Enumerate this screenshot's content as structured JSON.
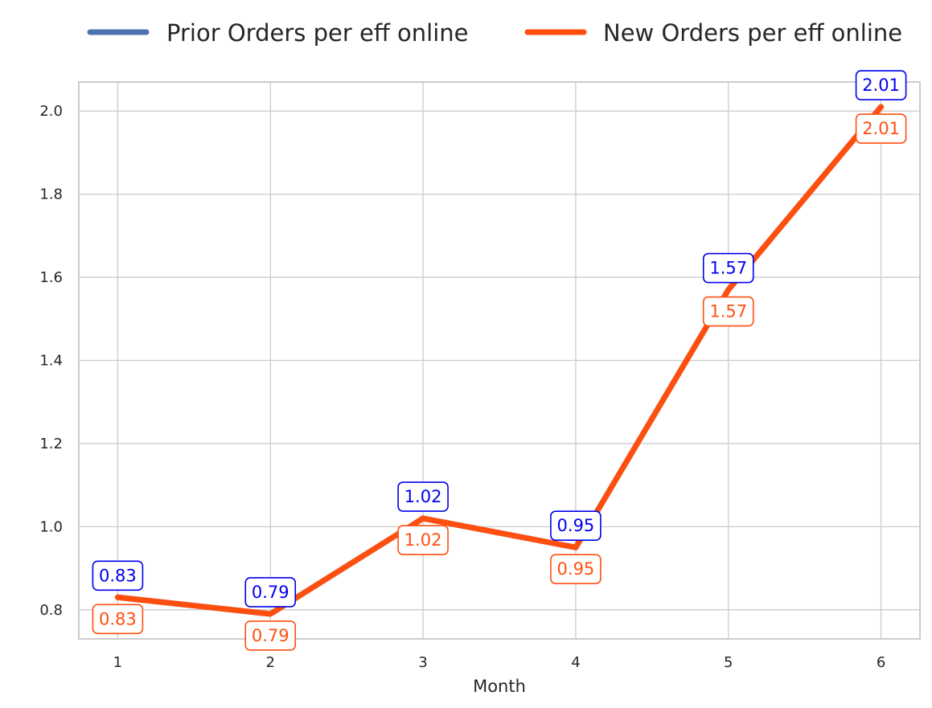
{
  "chart_data": {
    "type": "line",
    "categories": [
      "1",
      "2",
      "3",
      "4",
      "5",
      "6"
    ],
    "x": [
      1,
      2,
      3,
      4,
      5,
      6
    ],
    "xlabel": "Month",
    "ylabel": "",
    "title": "",
    "ylim": [
      0.73,
      2.07
    ],
    "yticks": [
      "0.8",
      "1.0",
      "1.2",
      "1.4",
      "1.6",
      "1.8",
      "2.0"
    ],
    "ytick_values": [
      0.8,
      1.0,
      1.2,
      1.4,
      1.6,
      1.8,
      2.0
    ],
    "grid": true,
    "legend_position": "top",
    "series": [
      {
        "name": "Prior Orders per eff online",
        "color": "#4c72b0",
        "label_color": "#0000ee",
        "values": [
          0.83,
          0.79,
          1.02,
          0.95,
          1.57,
          2.01
        ],
        "labels": [
          "0.83",
          "0.79",
          "1.02",
          "0.95",
          "1.57",
          "2.01"
        ]
      },
      {
        "name": "New Orders per eff online",
        "color": "#ff4f0f",
        "label_color": "#ff4f0f",
        "values": [
          0.83,
          0.79,
          1.02,
          0.95,
          1.57,
          2.01
        ],
        "labels": [
          "0.83",
          "0.79",
          "1.02",
          "0.95",
          "1.57",
          "2.01"
        ]
      }
    ]
  }
}
